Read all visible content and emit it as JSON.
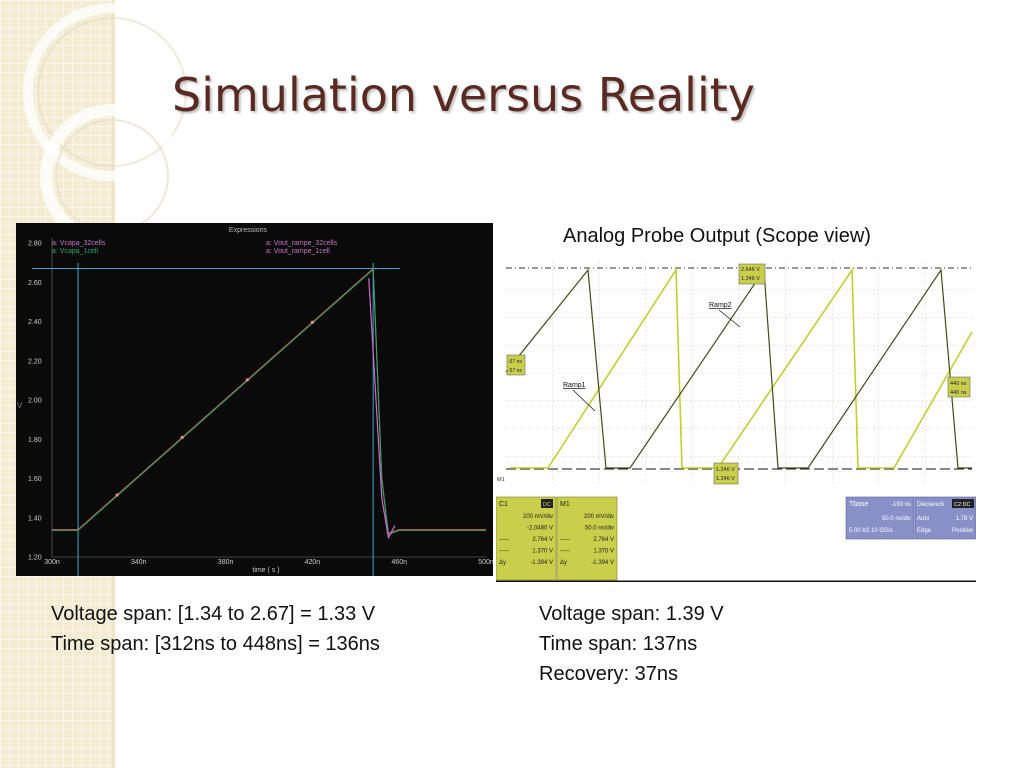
{
  "slide": {
    "title": "Simulation versus Reality"
  },
  "colors": {
    "title": "#5a2a22",
    "deco_background": "#f3ecd2",
    "sim_background": "#0a0a0a",
    "sim_trace_32cells": "#e23a3a",
    "sim_trace_1cell": "#2aa86a",
    "sim_trace_vout": "#d26ad2",
    "scope_ramp1": "#bfd02c",
    "scope_ramp2": "#3f4d18",
    "scope_box": "#c9cf4a",
    "scope_blue_box": "#8890c8"
  },
  "sim_plot": {
    "window_title": "Expressions",
    "legend_left": [
      "a: Vcapa_32cells",
      "a: Vcapa_1cell"
    ],
    "legend_right": [
      "a: Vout_rampe_32cells",
      "a: Vout_rampe_1cell"
    ],
    "y_ticks": [
      "2.80",
      "2.60",
      "2.40",
      "2.20",
      "2.00",
      "1.80",
      "1.60",
      "1.40",
      "1.20"
    ],
    "x_ticks": [
      "300n",
      "340n",
      "380n",
      "420n",
      "460n",
      "500n"
    ],
    "xlabel": "time ( s )",
    "ylabel_symbol": "V"
  },
  "chart_data": {
    "type": "line",
    "title": "",
    "xlabel": "time ( s )",
    "ylabel": "",
    "xlim": [
      300,
      500
    ],
    "ylim": [
      1.2,
      2.8
    ],
    "y_ticks": [
      2.8,
      2.6,
      2.4,
      2.2,
      2.0,
      1.8,
      1.6,
      1.4,
      1.2
    ],
    "x_ticks": [
      300,
      340,
      380,
      420,
      460,
      500
    ],
    "grid": false,
    "legend_position": "top",
    "series": [
      {
        "name": "Vcapa_32cells",
        "x": [
          300,
          312,
          448,
          452,
          455,
          460,
          500
        ],
        "y": [
          1.34,
          1.34,
          2.67,
          1.6,
          1.32,
          1.34,
          1.34
        ]
      },
      {
        "name": "Vcapa_1cell",
        "x": [
          300,
          312,
          448,
          452,
          455,
          460,
          500
        ],
        "y": [
          1.34,
          1.34,
          2.67,
          1.6,
          1.32,
          1.34,
          1.34
        ]
      }
    ],
    "reference_lines": {
      "x": [
        312,
        448
      ],
      "y": [
        2.67
      ]
    }
  },
  "scope": {
    "caption": "Analog Probe Output (Scope view)",
    "labels": {
      "ramp1": "Ramp1",
      "ramp2": "Ramp2",
      "marker_top": [
        "2.646 V",
        "1.246 V"
      ],
      "marker_mid_left": [
        "-57 ns",
        "-57 ns"
      ],
      "marker_bottom": [
        "1.246 V",
        "1.246 V"
      ],
      "marker_right": [
        "440 ns",
        "440 ns"
      ],
      "left_edge_mark": "M1"
    },
    "c1_box": {
      "header": "C1",
      "tag": "DC",
      "values": [
        "200 mV/div",
        "-2.0480 V",
        "2.764 V",
        "1.370 V",
        "-1.394 V"
      ],
      "row_labels": [
        "",
        "",
        "-----",
        "-----",
        "Δy"
      ]
    },
    "m1_box": {
      "header": "M1",
      "values": [
        "200 mV/div",
        "50.0 ns/div",
        "2.764 V",
        "1.370 V",
        "-1.394 V"
      ],
      "row_labels": [
        "",
        "",
        "-----",
        "-----",
        "Δy"
      ]
    },
    "tbase_box": {
      "header": "Tbase",
      "header_value": "-193 ns",
      "rows": [
        "50.0 ns/div",
        "5.00 kS   10 GS/s"
      ]
    },
    "trigger_box": {
      "header": "Déclench",
      "tag": "C2 DC",
      "rows": [
        [
          "Auto",
          "1.78 V"
        ],
        [
          "Edge",
          "Positive"
        ]
      ]
    }
  },
  "notes": {
    "left": [
      "Voltage span: [1.34 to 2.67] = 1.33 V",
      "Time span: [312ns to 448ns] = 136ns"
    ],
    "right": [
      "Voltage span: 1.39 V",
      "Time span: 137ns",
      "Recovery: 37ns"
    ]
  }
}
